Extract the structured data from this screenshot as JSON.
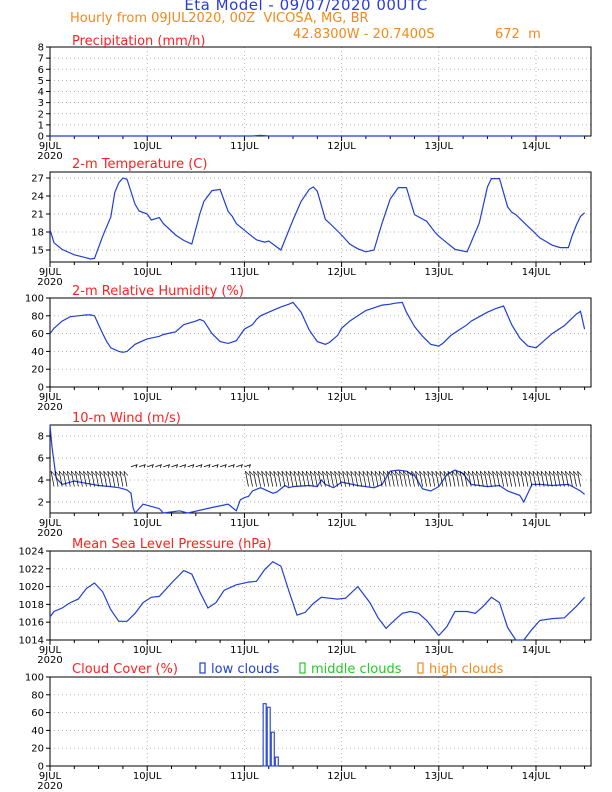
{
  "header": {
    "title": "Eta Model - 09/07/2020 00UTC",
    "subtitle": "Hourly from 09JUL2020, 00Z  VICOSA, MG, BR",
    "coords": "42.8300W - 20.7400S",
    "elevation": "672  m"
  },
  "colors": {
    "line": "#1f3fd6",
    "title": "#ff2020",
    "axis": "#000000",
    "grid": "#9a9a9a",
    "low": "#1f3fd6",
    "middle": "#22cc22",
    "high": "#f08a1a"
  },
  "chart_data": [
    {
      "type": "line",
      "title": "Precipitation (mm/h)",
      "x_unit": "hours from 09JUL2020 00Z",
      "xlim": [
        0,
        132
      ],
      "ylim": [
        0,
        8
      ],
      "yticks": [
        0,
        1,
        2,
        3,
        4,
        5,
        6,
        7,
        8
      ],
      "xtick_labels": [
        "9JUL",
        "10JUL",
        "11JUL",
        "12JUL",
        "13JUL",
        "14JUL"
      ],
      "year_label": "2020",
      "grid": true,
      "series": [
        {
          "x": [
            0,
            50,
            52,
            54,
            132
          ],
          "y": [
            0,
            0,
            0.05,
            0,
            0
          ]
        }
      ]
    },
    {
      "type": "line",
      "title": "2-m Temperature (C)",
      "x_unit": "hours from 09JUL2020 00Z",
      "xlim": [
        0,
        132
      ],
      "ylim": [
        13,
        28
      ],
      "yticks": [
        15,
        18,
        21,
        24,
        27
      ],
      "xtick_labels": [
        "9JUL",
        "10JUL",
        "11JUL",
        "12JUL",
        "13JUL",
        "14JUL"
      ],
      "year_label": "2020",
      "grid": true,
      "series": [
        {
          "x": [
            0,
            1,
            3,
            6,
            9,
            10,
            11,
            13,
            15,
            16,
            17,
            18,
            19,
            21,
            22,
            24,
            25,
            27,
            28,
            31,
            33,
            35,
            37,
            38,
            40,
            42,
            44,
            45,
            46,
            48,
            50,
            51,
            53,
            54,
            57,
            60,
            62,
            64,
            65,
            66,
            68,
            69,
            72,
            74,
            76,
            78,
            80,
            82,
            84,
            86,
            88,
            90,
            93,
            95,
            96,
            98,
            100,
            103,
            106,
            108,
            109,
            111,
            113,
            114,
            115,
            117,
            119,
            121,
            122,
            124,
            126,
            128,
            129,
            130,
            131,
            132
          ],
          "y": [
            18.4,
            16.2,
            15.1,
            14.2,
            13.7,
            13.5,
            13.6,
            17.3,
            20.5,
            24.6,
            26.2,
            27.0,
            26.8,
            22.6,
            21.5,
            21.0,
            20.0,
            20.4,
            19.4,
            17.5,
            16.6,
            16.0,
            21.0,
            23.1,
            24.9,
            25.1,
            21.4,
            20.6,
            19.4,
            18.3,
            17.2,
            16.7,
            16.3,
            16.5,
            15.0,
            20.0,
            23.1,
            25.1,
            25.5,
            24.8,
            20.1,
            19.5,
            17.5,
            16.0,
            15.2,
            14.7,
            15.0,
            19.5,
            23.5,
            25.4,
            25.4,
            20.9,
            19.8,
            18.0,
            17.3,
            16.2,
            15.1,
            14.7,
            19.5,
            25.5,
            26.9,
            26.9,
            22.2,
            21.3,
            20.9,
            19.6,
            18.3,
            17.0,
            16.6,
            15.8,
            15.4,
            15.4,
            17.5,
            19.2,
            20.6,
            21.2
          ]
        }
      ]
    },
    {
      "type": "line",
      "title": "2-m Relative Humidity (%)",
      "x_unit": "hours from 09JUL2020 00Z",
      "xlim": [
        0,
        132
      ],
      "ylim": [
        0,
        100
      ],
      "yticks": [
        0,
        20,
        40,
        60,
        80,
        100
      ],
      "xtick_labels": [
        "9JUL",
        "10JUL",
        "11JUL",
        "12JUL",
        "13JUL",
        "14JUL"
      ],
      "year_label": "2020",
      "grid": true,
      "series": [
        {
          "x": [
            0,
            1,
            3,
            5,
            7,
            9,
            10,
            11,
            12,
            13,
            14,
            15,
            17,
            18,
            19,
            21,
            23,
            24,
            26,
            27,
            28,
            31,
            33,
            36,
            37,
            38,
            40,
            42,
            44,
            46,
            48,
            50,
            51,
            52,
            54,
            57,
            59,
            60,
            62,
            64,
            66,
            68,
            69,
            71,
            72,
            74,
            76,
            78,
            82,
            84,
            85,
            87,
            88,
            90,
            92,
            94,
            96,
            97,
            99,
            101,
            103,
            104,
            106,
            108,
            110,
            112,
            114,
            116,
            118,
            120,
            122,
            124,
            127,
            130,
            131,
            132
          ],
          "y": [
            60,
            66,
            74,
            79,
            80,
            81,
            81,
            80,
            70,
            60,
            51,
            44,
            40,
            39,
            40,
            48,
            52,
            54,
            56,
            57,
            59,
            62,
            70,
            74,
            76,
            74,
            60,
            51,
            49,
            52,
            65,
            70,
            76,
            80,
            84,
            90,
            93,
            95,
            84,
            64,
            51,
            48,
            50,
            58,
            66,
            74,
            80,
            86,
            92,
            93,
            94,
            95,
            84,
            68,
            57,
            48,
            46,
            49,
            58,
            64,
            70,
            74,
            79,
            84,
            88,
            91,
            70,
            55,
            46,
            44,
            52,
            60,
            69,
            82,
            85,
            65
          ]
        }
      ]
    },
    {
      "type": "line",
      "title": "10-m Wind (m/s)",
      "x_unit": "hours from 09JUL2020 00Z",
      "xlim": [
        0,
        132
      ],
      "ylim": [
        1,
        9
      ],
      "yticks": [
        2,
        4,
        6,
        8
      ],
      "xtick_labels": [
        "9JUL",
        "10JUL",
        "11JUL",
        "12JUL",
        "13JUL",
        "14JUL"
      ],
      "year_label": "2020",
      "grid": true,
      "series": [
        {
          "x": [
            0,
            0.5,
            1.5,
            3,
            6,
            9,
            12,
            15,
            17,
            19,
            20,
            20.5,
            21,
            23,
            27,
            28,
            32,
            34,
            40,
            44,
            46,
            47,
            48,
            49,
            50,
            52,
            55,
            56,
            58,
            59,
            60,
            64,
            66,
            67,
            68,
            70,
            72,
            76,
            80,
            82,
            84,
            86,
            88,
            90,
            92,
            94,
            96,
            98,
            100,
            102,
            104,
            108,
            111,
            113,
            116,
            117,
            119,
            121,
            124,
            128,
            131,
            132
          ],
          "y": [
            9.0,
            7.0,
            4.2,
            3.6,
            3.9,
            3.7,
            3.5,
            3.4,
            3.3,
            3.1,
            2.8,
            1.5,
            1.0,
            1.8,
            1.4,
            1.0,
            1.2,
            1.0,
            1.5,
            1.8,
            1.2,
            2.2,
            2.4,
            2.5,
            3.0,
            3.3,
            2.8,
            2.9,
            3.5,
            3.3,
            3.4,
            3.5,
            3.4,
            4.0,
            3.6,
            3.3,
            3.8,
            3.5,
            3.3,
            3.6,
            4.8,
            4.9,
            4.8,
            4.4,
            3.2,
            3.0,
            3.4,
            4.5,
            4.9,
            4.6,
            3.6,
            3.4,
            3.5,
            3.0,
            2.6,
            2.0,
            3.6,
            3.6,
            3.5,
            3.6,
            3.0,
            2.7
          ]
        }
      ],
      "barb_layer": "wind barbs along the 3.4–5 m/s band"
    },
    {
      "type": "line",
      "title": "Mean Sea Level Pressure (hPa)",
      "x_unit": "hours from 09JUL2020 00Z",
      "xlim": [
        0,
        132
      ],
      "ylim": [
        1014,
        1024
      ],
      "yticks": [
        1014,
        1016,
        1018,
        1020,
        1022,
        1024
      ],
      "xtick_labels": [
        "9JUL",
        "10JUL",
        "11JUL",
        "12JUL",
        "13JUL",
        "14JUL"
      ],
      "year_label": "2020",
      "grid": true,
      "series": [
        {
          "x": [
            0,
            1,
            3,
            5,
            7,
            9,
            11,
            13,
            15,
            17,
            19,
            21,
            23,
            25,
            27,
            30,
            33,
            35,
            37,
            39,
            41,
            43,
            46,
            49,
            51,
            53,
            55,
            57,
            59,
            61,
            63,
            65,
            67,
            69,
            71,
            73,
            76,
            79,
            81,
            83,
            85,
            87,
            89,
            91,
            93,
            96,
            98,
            100,
            103,
            105,
            107,
            109,
            111,
            113,
            115,
            117,
            119,
            121,
            124,
            127,
            130,
            132
          ],
          "y": [
            1016.6,
            1017.2,
            1017.6,
            1018.2,
            1018.6,
            1019.8,
            1020.4,
            1019.4,
            1017.4,
            1016.1,
            1016.1,
            1017.0,
            1018.2,
            1018.8,
            1018.9,
            1020.4,
            1021.8,
            1021.4,
            1019.4,
            1017.6,
            1018.2,
            1019.6,
            1020.2,
            1020.5,
            1020.6,
            1021.9,
            1022.8,
            1022.3,
            1019.5,
            1016.8,
            1017.1,
            1018.1,
            1018.8,
            1018.7,
            1018.6,
            1018.7,
            1020.0,
            1018.2,
            1016.5,
            1015.3,
            1016.2,
            1017.0,
            1017.2,
            1017.0,
            1016.2,
            1014.5,
            1015.5,
            1017.2,
            1017.2,
            1017.0,
            1017.8,
            1018.8,
            1018.2,
            1015.4,
            1014.0,
            1014.0,
            1015.2,
            1016.2,
            1016.4,
            1016.5,
            1017.8,
            1018.8
          ]
        }
      ]
    },
    {
      "type": "bar",
      "title": "Cloud Cover (%)",
      "x_unit": "hours from 09JUL2020 00Z",
      "xlim": [
        0,
        132
      ],
      "ylim": [
        0,
        100
      ],
      "yticks": [
        0,
        20,
        40,
        60,
        80,
        100
      ],
      "xtick_labels": [
        "9JUL",
        "10JUL",
        "11JUL",
        "12JUL",
        "13JUL",
        "14JUL"
      ],
      "year_label": "2020",
      "grid": true,
      "legend": [
        "low clouds",
        "middle clouds",
        "high clouds"
      ],
      "series": [
        {
          "name": "low clouds",
          "x": [
            53,
            54,
            55,
            56
          ],
          "values": [
            70,
            66,
            38,
            10
          ]
        }
      ]
    }
  ]
}
